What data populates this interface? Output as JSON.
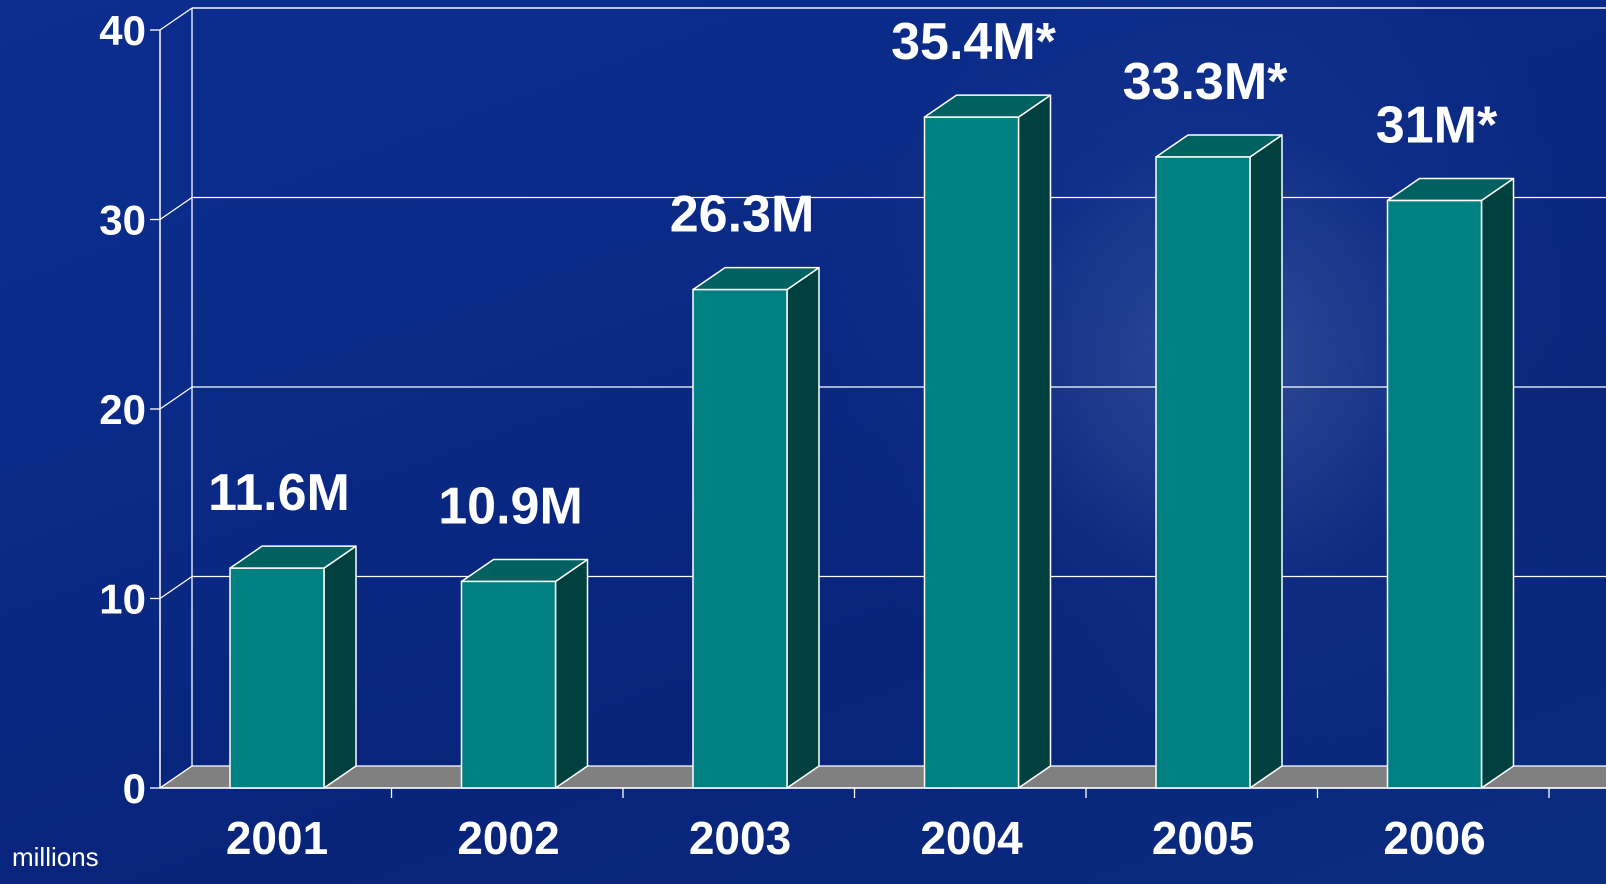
{
  "chart_data": {
    "type": "bar",
    "categories": [
      "2001",
      "2002",
      "2003",
      "2004",
      "2005",
      "2006"
    ],
    "values": [
      11.6,
      10.9,
      26.3,
      35.4,
      33.3,
      31
    ],
    "data_labels": [
      "11.6M",
      "10.9M",
      "26.3M",
      "35.4M*",
      "33.3M*",
      "31M*"
    ],
    "title": "",
    "xlabel": "",
    "ylabel": "",
    "unit_label": "millions",
    "ylim": [
      0,
      40
    ],
    "yticks": [
      "0",
      "10",
      "20",
      "30",
      "40"
    ],
    "grid": true,
    "style": "3d-columns",
    "colors": {
      "bar_front": "#008080",
      "bar_side": "#00403f",
      "bar_top": "#006161",
      "floor": "#808080",
      "gridline": "#ffffff",
      "text": "#ffffff"
    }
  }
}
